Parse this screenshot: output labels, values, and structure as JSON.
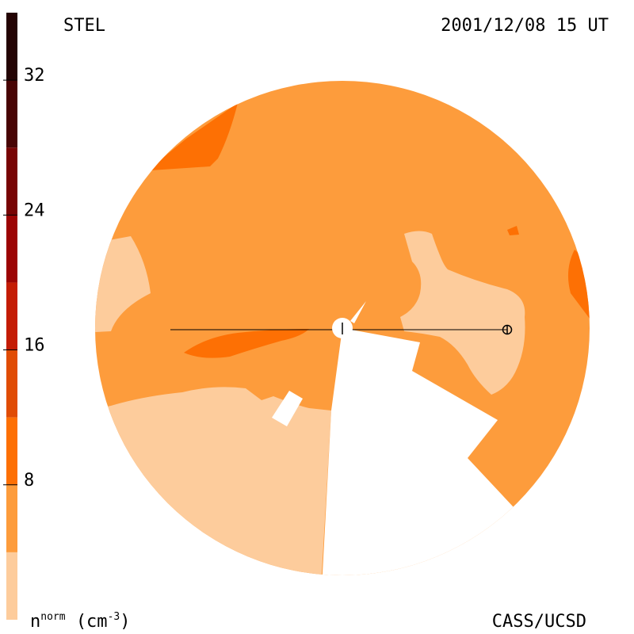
{
  "header": {
    "left": "STEL",
    "right": "2001/12/08 15 UT"
  },
  "footer": {
    "right": "CASS/UCSD",
    "unit_base": "n",
    "unit_sup": "norm",
    "unit_text": "(cm",
    "unit_exp": "-3",
    "unit_close": ")"
  },
  "chart_data": {
    "type": "heatmap",
    "title": "",
    "quantity": "n^norm (cm^-3)",
    "colorbar": {
      "min": 0,
      "max": 36,
      "ticks": [
        8,
        16,
        24,
        32
      ],
      "tick_labels": [
        "8",
        "16",
        "24",
        "32"
      ],
      "bands": [
        {
          "from": 0,
          "to": 4,
          "color": "#fdcc9c"
        },
        {
          "from": 4,
          "to": 8,
          "color": "#fd9c3c"
        },
        {
          "from": 8,
          "to": 12,
          "color": "#fd7004"
        },
        {
          "from": 12,
          "to": 16,
          "color": "#e04c04"
        },
        {
          "from": 16,
          "to": 20,
          "color": "#c41c04"
        },
        {
          "from": 20,
          "to": 24,
          "color": "#9c0404"
        },
        {
          "from": 24,
          "to": 28,
          "color": "#780404"
        },
        {
          "from": 28,
          "to": 32,
          "color": "#480404"
        },
        {
          "from": 32,
          "to": 36,
          "color": "#240404"
        }
      ]
    },
    "regions": {
      "background_level": 6,
      "low_level": 2,
      "high_level": 10
    },
    "markers": {
      "center": "Sun",
      "earth": "⊕"
    }
  }
}
